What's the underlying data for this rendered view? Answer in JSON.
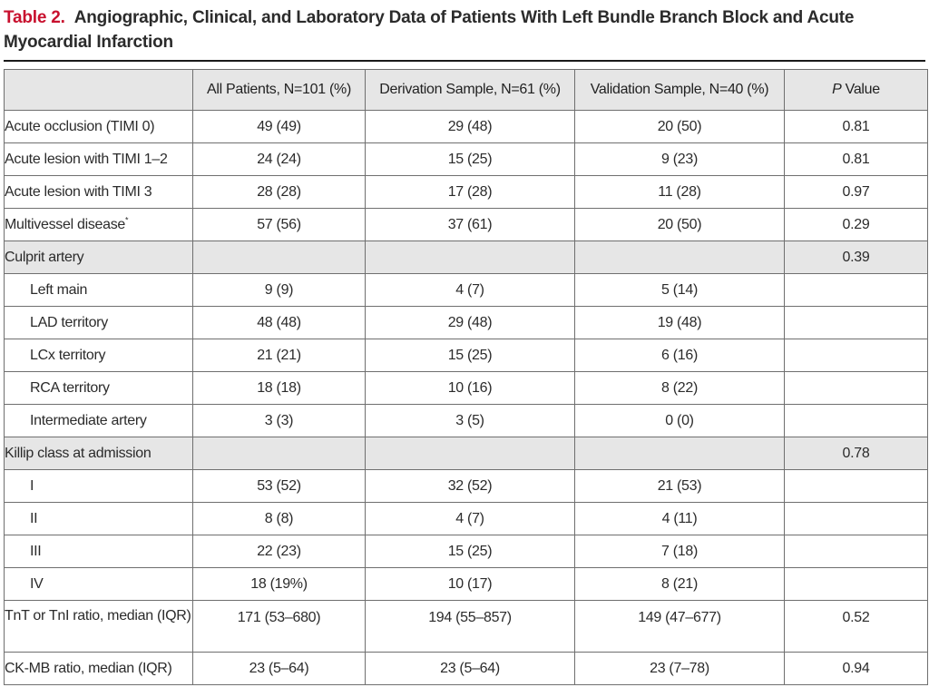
{
  "caption": {
    "label": "Table 2.",
    "title": "Angiographic, Clinical, and Laboratory Data of Patients With Left Bundle Branch Block and Acute Myocardial Infarction"
  },
  "table": {
    "header": {
      "blank": "",
      "col1": "All Patients, N=101 (%)",
      "col2": "Derivation Sample, N=61 (%)",
      "col3": "Validation Sample, N=40 (%)",
      "col4_italic": "P",
      "col4_rest": " Value"
    },
    "rows": [
      {
        "label": "Acute occlusion (TIMI 0)",
        "c1": "49 (49)",
        "c2": "29 (48)",
        "c3": "20 (50)",
        "p": "0.81"
      },
      {
        "label": "Acute lesion with TIMI 1–2",
        "c1": "24 (24)",
        "c2": "15 (25)",
        "c3": "9 (23)",
        "p": "0.81"
      },
      {
        "label": "Acute lesion with TIMI 3",
        "c1": "28 (28)",
        "c2": "17 (28)",
        "c3": "11 (28)",
        "p": "0.97"
      },
      {
        "label": "Multivessel disease",
        "sup": "*",
        "c1": "57 (56)",
        "c2": "37 (61)",
        "c3": "20 (50)",
        "p": "0.29"
      },
      {
        "label": "Culprit artery",
        "c1": "",
        "c2": "",
        "c3": "",
        "p": "0.39"
      },
      {
        "label": "Left main",
        "c1": "9 (9)",
        "c2": "4 (7)",
        "c3": "5 (14)",
        "p": ""
      },
      {
        "label": "LAD territory",
        "c1": "48 (48)",
        "c2": "29 (48)",
        "c3": "19 (48)",
        "p": ""
      },
      {
        "label": "LCx territory",
        "c1": "21 (21)",
        "c2": "15 (25)",
        "c3": "6 (16)",
        "p": ""
      },
      {
        "label": "RCA territory",
        "c1": "18 (18)",
        "c2": "10 (16)",
        "c3": "8 (22)",
        "p": ""
      },
      {
        "label": "Intermediate artery",
        "c1": "3 (3)",
        "c2": "3 (5)",
        "c3": "0 (0)",
        "p": ""
      },
      {
        "label": "Killip class at admission",
        "c1": "",
        "c2": "",
        "c3": "",
        "p": "0.78"
      },
      {
        "label": "I",
        "c1": "53 (52)",
        "c2": "32 (52)",
        "c3": "21 (53)",
        "p": ""
      },
      {
        "label": "II",
        "c1": "8 (8)",
        "c2": "4 (7)",
        "c3": "4 (11)",
        "p": ""
      },
      {
        "label": "III",
        "c1": "22 (23)",
        "c2": "15 (25)",
        "c3": "7 (18)",
        "p": ""
      },
      {
        "label": "IV",
        "c1": "18 (19%)",
        "c2": "10 (17)",
        "c3": "8 (21)",
        "p": ""
      },
      {
        "label": "TnT or TnI ratio, median (IQR)",
        "c1": "171 (53–680)",
        "c2": "194 (55–857)",
        "c3": "149 (47–677)",
        "p": "0.52"
      },
      {
        "label": "CK-MB ratio, median (IQR)",
        "c1": "23 (5–64)",
        "c2": "23 (5–64)",
        "c3": "23 (7–78)",
        "p": "0.94"
      }
    ]
  }
}
